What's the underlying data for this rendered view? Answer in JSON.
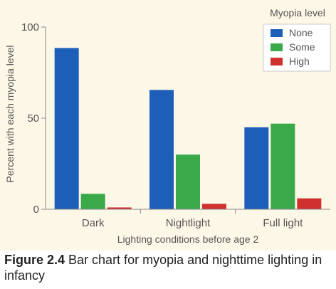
{
  "chart_data": {
    "type": "bar",
    "title": "",
    "xlabel": "Lighting conditions before age 2",
    "ylabel": "Percent with each myopia level",
    "categories": [
      "Dark",
      "Nightlight",
      "Full light"
    ],
    "ylim": [
      0,
      100
    ],
    "yticks": [
      "0",
      "50",
      "100"
    ],
    "legend_title": "Myopia level",
    "legend_position": "top-right",
    "grid": false,
    "series": [
      {
        "name": "None",
        "color": "#1d5fb8",
        "values": [
          88.5,
          65.5,
          45
        ]
      },
      {
        "name": "Some",
        "color": "#3aa94a",
        "values": [
          8.5,
          30,
          47
        ]
      },
      {
        "name": "High",
        "color": "#d0302e",
        "values": [
          1,
          3,
          6
        ]
      }
    ]
  },
  "caption": {
    "figure_number": "Figure 2.4",
    "text": " Bar chart for myopia and nighttime lighting in infancy"
  }
}
